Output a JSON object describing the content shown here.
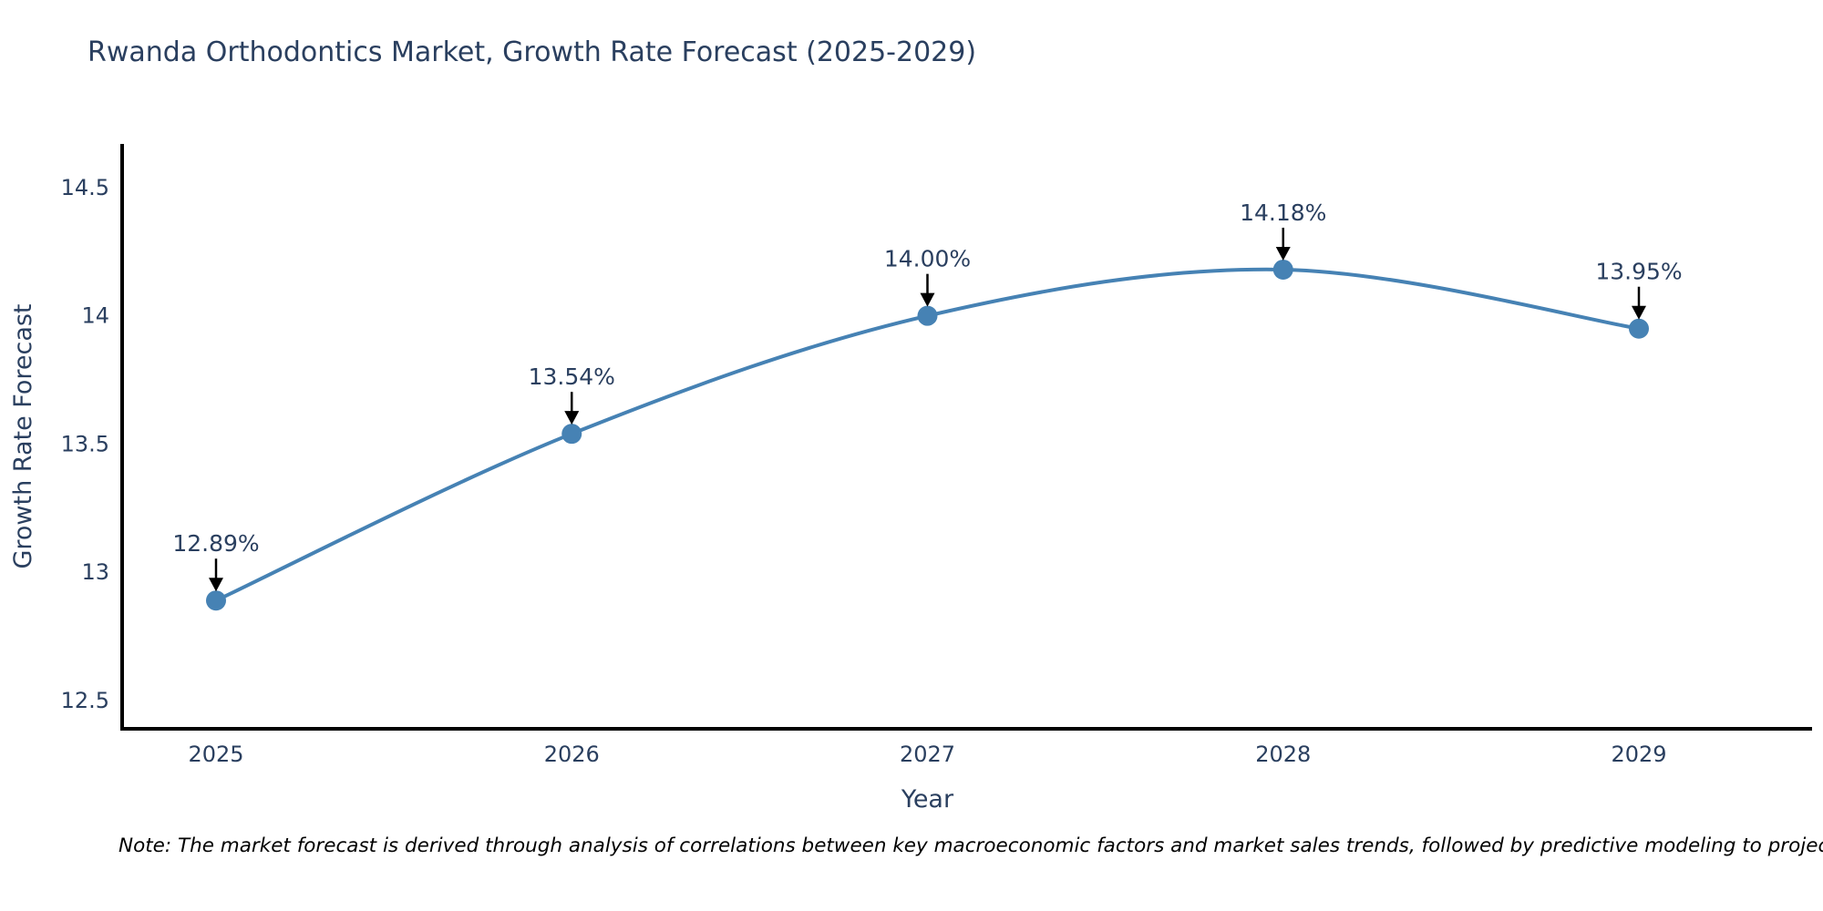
{
  "chart_data": {
    "type": "line",
    "title": "Rwanda Orthodontics Market, Growth Rate Forecast (2025-2029)",
    "xlabel": "Year",
    "ylabel": "Growth Rate Forecast",
    "x": [
      2025,
      2026,
      2027,
      2028,
      2029
    ],
    "values": [
      12.89,
      13.54,
      14.0,
      14.18,
      13.95
    ],
    "point_labels": [
      "12.89%",
      "13.54%",
      "14.00%",
      "14.18%",
      "13.95%"
    ],
    "y_ticks": [
      12.5,
      13,
      13.5,
      14,
      14.5
    ],
    "ylim": [
      12.39,
      14.67
    ],
    "grid": false,
    "legend": "none",
    "line_shape": "spline",
    "line_color": "#4682b4",
    "marker_color": "#4682b4",
    "axis_color": "#000000",
    "arrow_color": "#000000",
    "title_color": "#2a3f5f",
    "tick_color": "#2a3f5f",
    "note": "Note: The market forecast is derived through analysis of correlations between key macroeconomic factors and market sales trends, followed by predictive modeling to project future sal"
  }
}
